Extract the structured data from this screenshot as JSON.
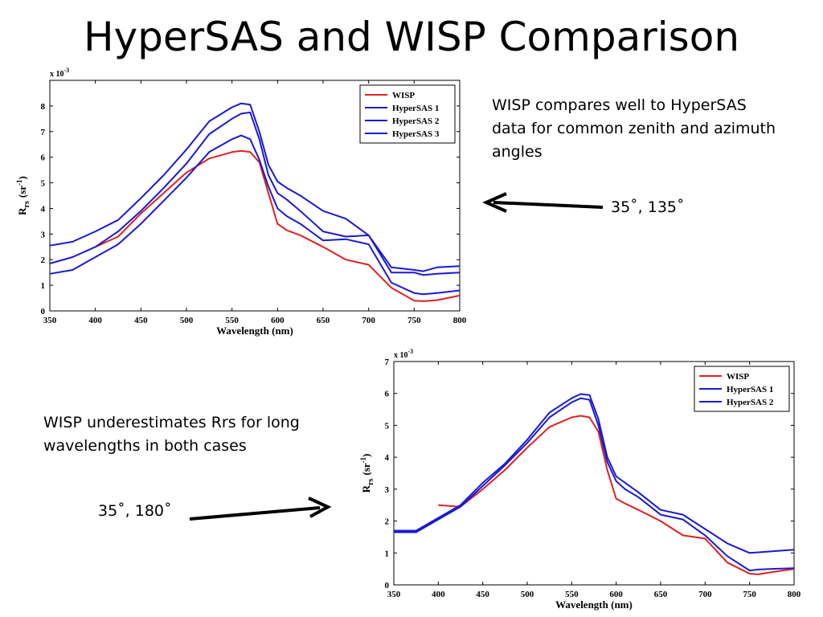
{
  "slide": {
    "title": "HyperSAS and WISP Comparison",
    "note_top": "WISP compares well to HyperSAS data for common zenith and azimuth angles",
    "note_bottom": "WISP underestimates Rrs for long wavelengths in both cases",
    "angle_top": "35˚, 135˚",
    "angle_bottom": "35˚, 180˚"
  },
  "chart_data": [
    {
      "type": "line",
      "scale_label": "x 10",
      "scale_exponent": "-3",
      "xlabel": "Wavelength (nm)",
      "ylabel_main": "R",
      "ylabel_sub": "rs",
      "ylabel_unit_open": "(sr",
      "ylabel_unit_exp": "-1",
      "ylabel_unit_close": ")",
      "xlim": [
        350,
        800
      ],
      "ylim": [
        0,
        9
      ],
      "xticks": [
        "350",
        "400",
        "450",
        "500",
        "550",
        "600",
        "650",
        "700",
        "750",
        "800"
      ],
      "yticks": [
        "0",
        "1",
        "2",
        "3",
        "4",
        "5",
        "6",
        "7",
        "8"
      ],
      "legend_position": "top-right",
      "grid": false,
      "x": [
        350,
        375,
        400,
        425,
        450,
        475,
        500,
        525,
        550,
        560,
        570,
        580,
        590,
        600,
        610,
        625,
        650,
        675,
        700,
        725,
        750,
        760,
        775,
        800
      ],
      "series": [
        {
          "name": "WISP",
          "color": "#e02020",
          "values": [
            null,
            null,
            2.5,
            2.9,
            3.8,
            4.6,
            5.4,
            5.95,
            6.2,
            6.25,
            6.2,
            5.8,
            4.6,
            3.4,
            3.15,
            2.95,
            2.5,
            2.0,
            1.8,
            0.9,
            0.4,
            0.38,
            0.42,
            0.6
          ]
        },
        {
          "name": "HyperSAS 1",
          "color": "#1a1ad0",
          "values": [
            2.55,
            2.7,
            3.1,
            3.55,
            4.4,
            5.3,
            6.3,
            7.4,
            7.95,
            8.1,
            8.05,
            7.0,
            5.7,
            5.05,
            4.8,
            4.5,
            3.9,
            3.6,
            2.95,
            1.7,
            1.6,
            1.55,
            1.7,
            1.75
          ]
        },
        {
          "name": "HyperSAS 2",
          "color": "#1a1ad0",
          "values": [
            1.85,
            2.1,
            2.5,
            3.1,
            3.9,
            4.8,
            5.75,
            6.9,
            7.5,
            7.7,
            7.75,
            6.7,
            5.3,
            4.6,
            4.35,
            3.9,
            3.1,
            2.9,
            2.95,
            1.5,
            1.5,
            1.4,
            1.45,
            1.5
          ]
        },
        {
          "name": "HyperSAS 3",
          "color": "#1a1ad0",
          "values": [
            1.45,
            1.6,
            2.1,
            2.6,
            3.4,
            4.3,
            5.2,
            6.2,
            6.7,
            6.85,
            6.7,
            5.9,
            4.85,
            4.0,
            3.7,
            3.4,
            2.75,
            2.8,
            2.6,
            1.1,
            0.7,
            0.65,
            0.7,
            0.8
          ]
        }
      ]
    },
    {
      "type": "line",
      "scale_label": "x 10",
      "scale_exponent": "-3",
      "xlabel": "Wavelength (nm)",
      "ylabel_main": "R",
      "ylabel_sub": "rs",
      "ylabel_unit_open": "(sr",
      "ylabel_unit_exp": "-1",
      "ylabel_unit_close": ")",
      "xlim": [
        350,
        800
      ],
      "ylim": [
        0,
        7
      ],
      "xticks": [
        "350",
        "400",
        "450",
        "500",
        "550",
        "600",
        "650",
        "700",
        "750",
        "800"
      ],
      "yticks": [
        "0",
        "1",
        "2",
        "3",
        "4",
        "5",
        "6",
        "7"
      ],
      "legend_position": "top-right",
      "grid": false,
      "x": [
        350,
        375,
        400,
        425,
        450,
        475,
        500,
        525,
        550,
        560,
        570,
        580,
        590,
        600,
        610,
        625,
        650,
        675,
        700,
        725,
        750,
        760,
        775,
        800
      ],
      "series": [
        {
          "name": "WISP",
          "color": "#e02020",
          "values": [
            null,
            null,
            2.5,
            2.45,
            3.0,
            3.6,
            4.3,
            4.95,
            5.25,
            5.3,
            5.25,
            4.8,
            3.6,
            2.7,
            2.55,
            2.35,
            2.0,
            1.55,
            1.45,
            0.7,
            0.35,
            0.33,
            0.4,
            0.5
          ]
        },
        {
          "name": "HyperSAS 1",
          "color": "#1a1ad0",
          "values": [
            1.7,
            1.7,
            2.1,
            2.5,
            3.2,
            3.8,
            4.55,
            5.4,
            5.85,
            5.98,
            5.95,
            5.2,
            4.0,
            3.4,
            3.2,
            2.9,
            2.35,
            2.2,
            1.75,
            1.3,
            1.0,
            1.02,
            1.05,
            1.1
          ]
        },
        {
          "name": "HyperSAS 2",
          "color": "#1a1ad0",
          "values": [
            1.65,
            1.65,
            2.05,
            2.45,
            3.1,
            3.75,
            4.45,
            5.25,
            5.72,
            5.85,
            5.8,
            5.0,
            3.85,
            3.25,
            3.0,
            2.75,
            2.2,
            2.05,
            1.55,
            0.9,
            0.45,
            0.48,
            0.5,
            0.52
          ]
        }
      ]
    }
  ]
}
